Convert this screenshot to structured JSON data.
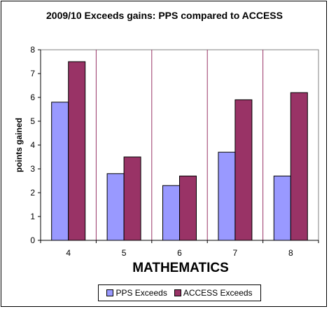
{
  "chart_data": {
    "type": "bar",
    "title": "2009/10 Exceeds gains: PPS compared to ACCESS",
    "xlabel": "MATHEMATICS",
    "ylabel": "points gained",
    "categories": [
      "4",
      "5",
      "6",
      "7",
      "8"
    ],
    "series": [
      {
        "name": "PPS Exceeds",
        "values": [
          5.8,
          2.8,
          2.3,
          3.7,
          2.7
        ],
        "color": "#9999ff"
      },
      {
        "name": "ACCESS Exceeds",
        "values": [
          7.5,
          3.5,
          2.7,
          5.9,
          6.2
        ],
        "color": "#993366"
      }
    ],
    "ylim": [
      0,
      8
    ],
    "yticks": [
      "0",
      "1",
      "2",
      "3",
      "4",
      "5",
      "6",
      "7",
      "8"
    ],
    "grid": "vertical category separators",
    "legend_position": "bottom",
    "plot_background": "#ffffff",
    "separator_color": "#993366"
  }
}
